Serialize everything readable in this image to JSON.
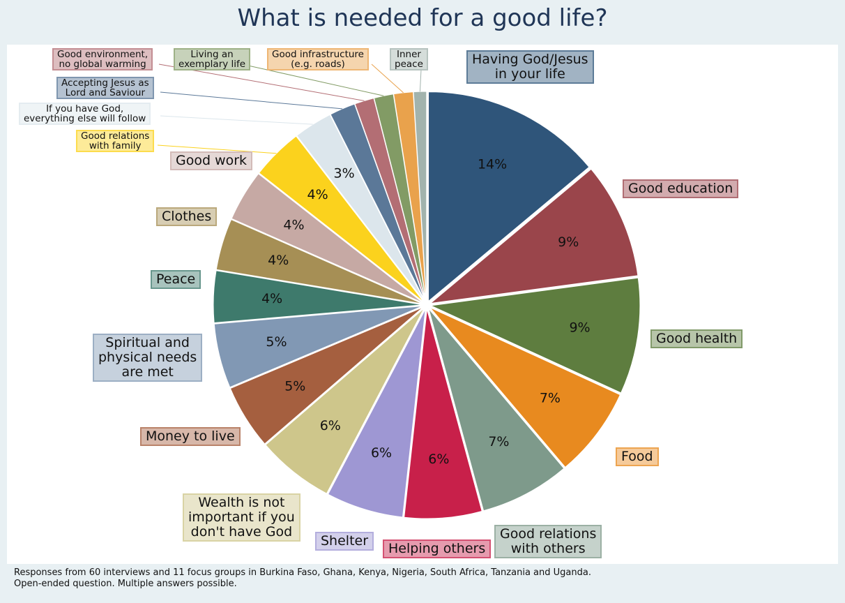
{
  "chart_data": {
    "type": "pie",
    "title": "What is needed for a good life?",
    "categories": [
      "Having God/Jesus\nin your life",
      "Good education",
      "Good health",
      "Food",
      "Good relations\nwith others",
      "Helping others",
      "Shelter",
      "Wealth is not\nimportant if you\ndon't have God",
      "Money to live",
      "Spiritual and\nphysical needs\nare met",
      "Peace",
      "Clothes",
      "Good work",
      "Good relations\nwith family",
      "If you have God,\neverything else will follow",
      "Accepting Jesus as\nLord and Saviour",
      "Good environment,\nno global warming",
      "Living an\nexemplary life",
      "Good infrastructure\n(e.g. roads)",
      "Inner\npeace"
    ],
    "values": [
      14,
      9,
      9,
      7,
      7,
      6,
      6,
      6,
      5,
      5,
      4,
      4,
      4,
      4,
      3,
      2,
      1.5,
      1.5,
      1.5,
      1
    ],
    "value_labels": [
      "14%",
      "9%",
      "9%",
      "7%",
      "7%",
      "6%",
      "6%",
      "6%",
      "5%",
      "5%",
      "4%",
      "4%",
      "4%",
      "4%",
      "3%",
      null,
      null,
      null,
      null,
      null
    ],
    "colors": [
      "#2f557a",
      "#9a454b",
      "#5e7d3f",
      "#e88a1f",
      "#7e9a8b",
      "#c8204a",
      "#9e97d3",
      "#cec68b",
      "#a55f3f",
      "#8198b4",
      "#3e7a6c",
      "#a68f55",
      "#c6a9a4",
      "#fbd21d",
      "#dce6ec",
      "#5b7898",
      "#b36e74",
      "#829b65",
      "#e9a24c",
      "#a2b3ad"
    ],
    "notes": [
      "Responses from 60 interviews and 11 focus groups in Burkina Faso, Ghana, Kenya, Nigeria, South Africa, Tanzania and Uganda.",
      "Open-ended question. Multiple answers possible."
    ]
  }
}
